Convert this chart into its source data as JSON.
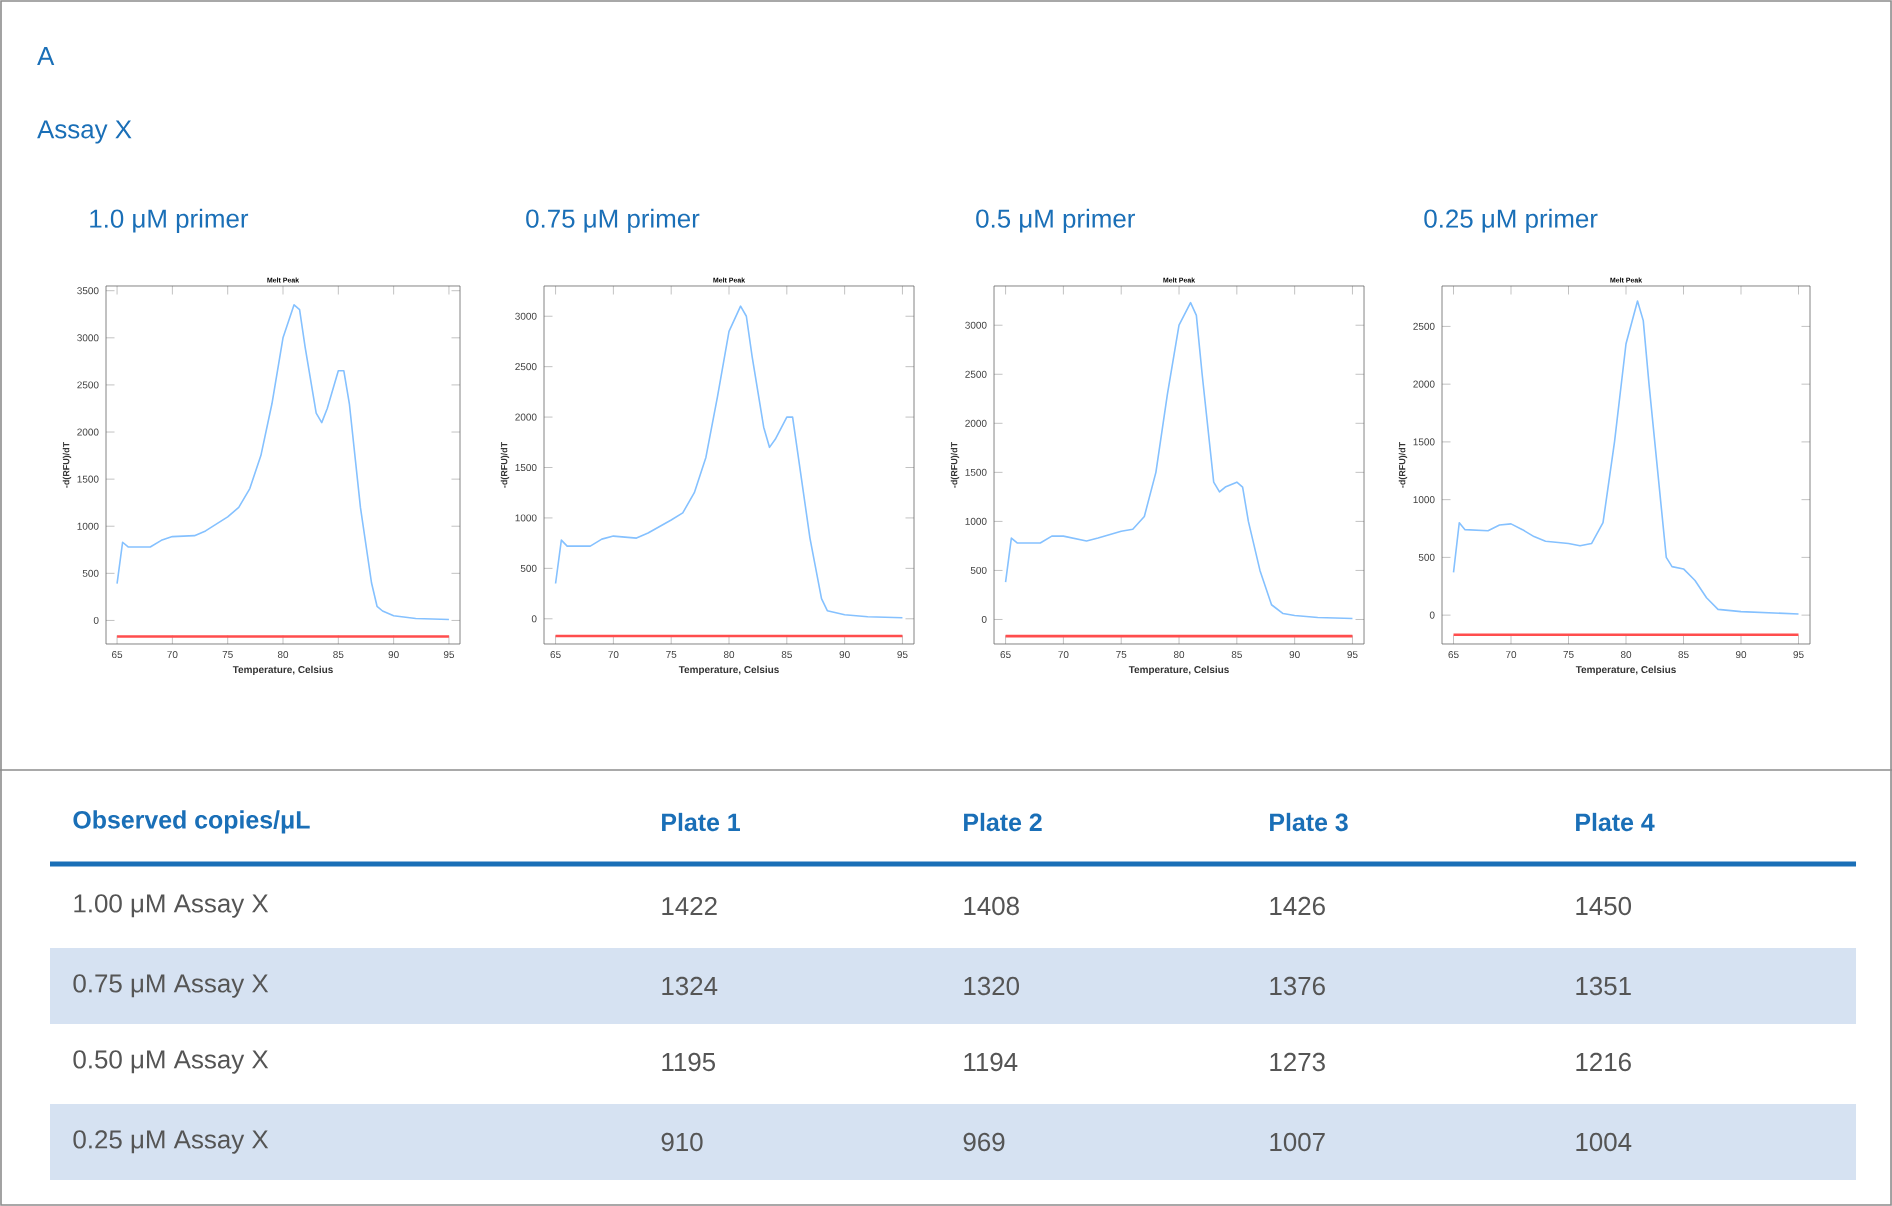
{
  "chart_data": [
    {
      "type": "line",
      "title": "1.0 μM primer",
      "subtitle": "Melt Peak",
      "xlabel": "Temperature, Celsius",
      "ylabel": "-d(RFU)/dT",
      "annotations": [
        "A",
        "Assay X"
      ],
      "xlim": [
        64,
        96
      ],
      "ylim": [
        -250,
        3550
      ],
      "xticks": [
        65,
        70,
        75,
        80,
        85,
        90,
        95
      ],
      "yticks": [
        0,
        500,
        1000,
        1500,
        2000,
        2500,
        3000,
        3500
      ],
      "series": [
        {
          "color": "#85c1ff",
          "x": [
            65,
            65.5,
            66,
            68,
            69,
            70,
            72,
            73,
            75,
            76,
            77,
            78,
            79,
            80,
            81,
            81.5,
            82,
            83,
            83.5,
            84,
            85,
            85.5,
            86,
            87,
            88,
            88.5,
            89,
            90,
            92,
            95
          ],
          "values": [
            390,
            830,
            780,
            780,
            850,
            890,
            900,
            950,
            1100,
            1200,
            1400,
            1750,
            2300,
            3000,
            3350,
            3300,
            2900,
            2200,
            2100,
            2250,
            2650,
            2650,
            2300,
            1200,
            400,
            150,
            100,
            50,
            20,
            10
          ]
        },
        {
          "color": "#ff4d4d",
          "x": [
            65,
            95
          ],
          "values": [
            -170,
            -170
          ]
        }
      ]
    },
    {
      "type": "line",
      "title": "0.75 μM primer",
      "subtitle": "Melt Peak",
      "xlabel": "Temperature, Celsius",
      "ylabel": "-d(RFU)/dT",
      "xlim": [
        64,
        96
      ],
      "ylim": [
        -250,
        3300
      ],
      "xticks": [
        65,
        70,
        75,
        80,
        85,
        90,
        95
      ],
      "yticks": [
        0,
        500,
        1000,
        1500,
        2000,
        2500,
        3000
      ],
      "series": [
        {
          "color": "#85c1ff",
          "x": [
            65,
            65.5,
            66,
            68,
            69,
            70,
            72,
            73,
            75,
            76,
            77,
            78,
            79,
            80,
            81,
            81.5,
            82,
            83,
            83.5,
            84,
            85,
            85.5,
            86,
            87,
            88,
            88.5,
            90,
            92,
            95
          ],
          "values": [
            350,
            780,
            720,
            720,
            790,
            820,
            800,
            850,
            980,
            1050,
            1250,
            1600,
            2200,
            2850,
            3100,
            3000,
            2600,
            1900,
            1700,
            1780,
            2000,
            2000,
            1600,
            800,
            200,
            80,
            40,
            20,
            10
          ]
        },
        {
          "color": "#ff4d4d",
          "x": [
            65,
            95
          ],
          "values": [
            -170,
            -170
          ]
        }
      ]
    },
    {
      "type": "line",
      "title": "0.5 μM primer",
      "subtitle": "Melt Peak",
      "xlabel": "Temperature, Celsius",
      "ylabel": "-d(RFU)/dT",
      "xlim": [
        64,
        96
      ],
      "ylim": [
        -250,
        3400
      ],
      "xticks": [
        65,
        70,
        75,
        80,
        85,
        90,
        95
      ],
      "yticks": [
        0,
        500,
        1000,
        1500,
        2000,
        2500,
        3000
      ],
      "series": [
        {
          "color": "#85c1ff",
          "x": [
            65,
            65.5,
            66,
            68,
            69,
            70,
            72,
            73,
            75,
            76,
            77,
            78,
            79,
            80,
            81,
            81.5,
            82,
            83,
            83.5,
            84,
            85,
            85.5,
            86,
            87,
            88,
            89,
            90,
            92,
            95
          ],
          "values": [
            380,
            830,
            780,
            780,
            850,
            850,
            800,
            830,
            900,
            920,
            1050,
            1500,
            2300,
            3000,
            3230,
            3100,
            2500,
            1400,
            1300,
            1350,
            1400,
            1350,
            1000,
            500,
            150,
            60,
            40,
            20,
            10
          ]
        },
        {
          "color": "#ff4d4d",
          "x": [
            65,
            95
          ],
          "values": [
            -170,
            -170
          ]
        }
      ]
    },
    {
      "type": "line",
      "title": "0.25 μM primer",
      "subtitle": "Melt Peak",
      "xlabel": "Temperature, Celsius",
      "ylabel": "-d(RFU)/dT",
      "xlim": [
        64,
        96
      ],
      "ylim": [
        -250,
        2850
      ],
      "xticks": [
        65,
        70,
        75,
        80,
        85,
        90,
        95
      ],
      "yticks": [
        0,
        500,
        1000,
        1500,
        2000,
        2500
      ],
      "series": [
        {
          "color": "#85c1ff",
          "x": [
            65,
            65.5,
            66,
            68,
            69,
            70,
            71,
            72,
            73,
            75,
            76,
            77,
            78,
            79,
            80,
            81,
            81.5,
            82,
            83,
            83.5,
            84,
            85,
            86,
            87,
            88,
            90,
            95
          ],
          "values": [
            370,
            800,
            740,
            730,
            780,
            790,
            740,
            680,
            640,
            620,
            600,
            620,
            800,
            1500,
            2350,
            2720,
            2550,
            2000,
            1000,
            500,
            420,
            400,
            300,
            150,
            50,
            30,
            10
          ]
        },
        {
          "color": "#ff4d4d",
          "x": [
            65,
            95
          ],
          "values": [
            -170,
            -170
          ]
        }
      ]
    },
    {
      "type": "other",
      "title": "Observed copies/μL",
      "categories": [
        "Plate 1",
        "Plate 2",
        "Plate 3",
        "Plate 4"
      ],
      "data_labels": true,
      "series": [
        {
          "name": "1.00 μM Assay X",
          "values": [
            1422,
            1408,
            1426,
            1450
          ]
        },
        {
          "name": "0.75 μM Assay X",
          "values": [
            1324,
            1320,
            1376,
            1351
          ]
        },
        {
          "name": "0.50 μM Assay X",
          "values": [
            1195,
            1194,
            1273,
            1216
          ]
        },
        {
          "name": "0.25 μM Assay X",
          "values": [
            910,
            969,
            1007,
            1004
          ]
        }
      ]
    }
  ]
}
